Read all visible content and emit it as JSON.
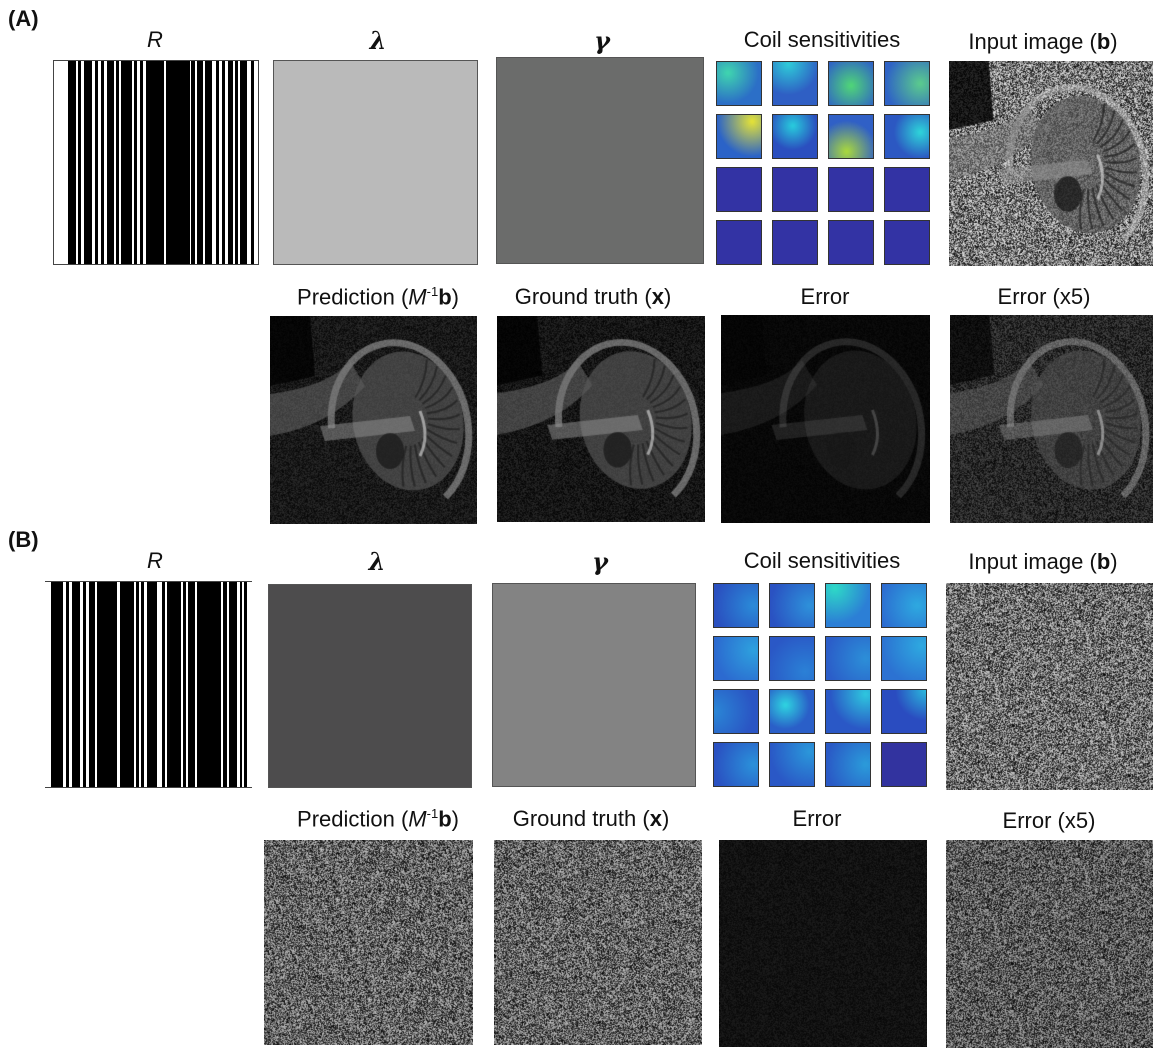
{
  "panels": [
    {
      "label": "(A)",
      "titles": {
        "R": "R",
        "lambda": "λ",
        "gamma": "γ",
        "coil": "Coil sensitivities",
        "input_prefix": "Input image (",
        "input_bold": "b",
        "input_suffix": ")",
        "pred_prefix": "Prediction (",
        "pred_M": "M",
        "pred_sup": "-1",
        "pred_bold": "b",
        "pred_suffix": ")",
        "gt_prefix": "Ground truth (",
        "gt_bold": "x",
        "gt_suffix": ")",
        "error": "Error",
        "error5": "Error (x5)"
      },
      "lambda_color": "#bababa",
      "gamma_color": "#6b6c6b",
      "coil_maps": [
        {
          "base": "#2c6fc7",
          "hot": "#3fd3b0",
          "hx": 0.25,
          "hy": 0.25,
          "r": 0.7
        },
        {
          "base": "#2f5fc4",
          "hot": "#2ec9d8",
          "hx": 0.35,
          "hy": 0.05,
          "r": 0.7
        },
        {
          "base": "#2f63c6",
          "hot": "#4fd37a",
          "hx": 0.5,
          "hy": 0.55,
          "r": 0.7
        },
        {
          "base": "#2f63c6",
          "hot": "#5ac98f",
          "hx": 0.8,
          "hy": 0.5,
          "r": 0.8
        },
        {
          "base": "#2b63c8",
          "hot": "#e1e03a",
          "hx": 0.8,
          "hy": 0.15,
          "r": 0.8
        },
        {
          "base": "#2b4fbf",
          "hot": "#28c8dc",
          "hx": 0.45,
          "hy": 0.25,
          "r": 0.55
        },
        {
          "base": "#3060c6",
          "hot": "#a7d640",
          "hx": 0.4,
          "hy": 0.85,
          "r": 0.7
        },
        {
          "base": "#2c58c2",
          "hot": "#2ed1d9",
          "hx": 0.8,
          "hy": 0.4,
          "r": 0.6
        },
        {
          "base": "#3333a4",
          "hot": "#3333a4",
          "hx": 0.5,
          "hy": 0.5,
          "r": 0.5
        },
        {
          "base": "#3333a4",
          "hot": "#3333a4",
          "hx": 0.5,
          "hy": 0.5,
          "r": 0.5
        },
        {
          "base": "#3333a4",
          "hot": "#3333a4",
          "hx": 0.5,
          "hy": 0.5,
          "r": 0.5
        },
        {
          "base": "#3333a4",
          "hot": "#3333a4",
          "hx": 0.5,
          "hy": 0.5,
          "r": 0.5
        },
        {
          "base": "#3333a4",
          "hot": "#3333a4",
          "hx": 0.5,
          "hy": 0.5,
          "r": 0.5
        },
        {
          "base": "#3333a4",
          "hot": "#3333a4",
          "hx": 0.5,
          "hy": 0.5,
          "r": 0.5
        },
        {
          "base": "#3333a4",
          "hot": "#3333a4",
          "hx": 0.5,
          "hy": 0.5,
          "r": 0.5
        },
        {
          "base": "#3333a4",
          "hot": "#3333a4",
          "hx": 0.5,
          "hy": 0.5,
          "r": 0.5
        }
      ],
      "images": {
        "input": "noisy brain MRI sagittal",
        "prediction": "brain MRI sagittal",
        "ground_truth": "brain MRI sagittal",
        "error": "dim brain MRI sagittal",
        "error5": "brain MRI sagittal with noise"
      }
    },
    {
      "label": "(B)",
      "titles": {
        "R": "R",
        "lambda": "λ",
        "gamma": "γ",
        "coil": "Coil sensitivities",
        "input_prefix": "Input image (",
        "input_bold": "b",
        "input_suffix": ")",
        "pred_prefix": "Prediction (",
        "pred_M": "M",
        "pred_sup": "-1",
        "pred_bold": "b",
        "pred_suffix": ")",
        "gt_prefix": "Ground truth (",
        "gt_bold": "x",
        "gt_suffix": ")",
        "error": "Error",
        "error5": "Error (x5)"
      },
      "lambda_color": "#4d4c4d",
      "gamma_color": "#838383",
      "coil_maps": [
        {
          "base": "#2a50c0",
          "hot": "#2b8ad8",
          "hx": 0.9,
          "hy": 0.5,
          "r": 0.9
        },
        {
          "base": "#2a52c2",
          "hot": "#2e90da",
          "hx": 0.9,
          "hy": 0.5,
          "r": 0.9
        },
        {
          "base": "#2c7fd6",
          "hot": "#2ed7c8",
          "hx": 0.2,
          "hy": 0.1,
          "r": 0.8
        },
        {
          "base": "#2c6ad0",
          "hot": "#2ea8e0",
          "hx": 0.8,
          "hy": 0.5,
          "r": 0.9
        },
        {
          "base": "#2c6ad0",
          "hot": "#2ea0de",
          "hx": 0.9,
          "hy": 0.3,
          "r": 0.9
        },
        {
          "base": "#2a58c6",
          "hot": "#2b80d6",
          "hx": 0.8,
          "hy": 0.8,
          "r": 0.9
        },
        {
          "base": "#2b5ec9",
          "hot": "#2c8ed8",
          "hx": 0.9,
          "hy": 0.5,
          "r": 0.9
        },
        {
          "base": "#2c72d2",
          "hot": "#2ea8e0",
          "hx": 0.9,
          "hy": 0.2,
          "r": 0.9
        },
        {
          "base": "#2a55c4",
          "hot": "#2b86d6",
          "hx": 0.0,
          "hy": 0.5,
          "r": 0.9
        },
        {
          "base": "#2a5fc8",
          "hot": "#2ed0e0",
          "hx": 0.35,
          "hy": 0.35,
          "r": 0.55
        },
        {
          "base": "#2a58c6",
          "hot": "#2ec4de",
          "hx": 0.9,
          "hy": 0.1,
          "r": 0.8
        },
        {
          "base": "#2a4cc0",
          "hot": "#2bb6dc",
          "hx": 1.0,
          "hy": 0.0,
          "r": 0.7
        },
        {
          "base": "#2a52c2",
          "hot": "#2b90da",
          "hx": 0.9,
          "hy": 0.5,
          "r": 0.9
        },
        {
          "base": "#2a58c6",
          "hot": "#2b96da",
          "hx": 0.9,
          "hy": 0.2,
          "r": 0.9
        },
        {
          "base": "#2a5ac6",
          "hot": "#2b9ada",
          "hx": 0.9,
          "hy": 0.5,
          "r": 0.9
        },
        {
          "base": "#32339f",
          "hot": "#32339f",
          "hx": 0.5,
          "hy": 0.5,
          "r": 0.5
        }
      ],
      "images": {
        "input": "noise",
        "prediction": "noise",
        "ground_truth": "noise",
        "error": "dark noise",
        "error5": "noise"
      }
    }
  ]
}
